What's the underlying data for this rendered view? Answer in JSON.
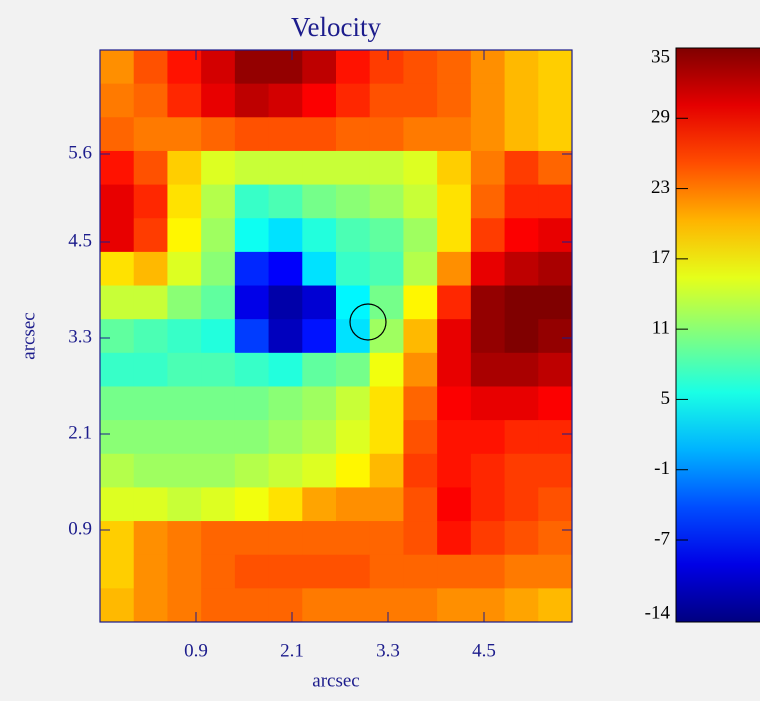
{
  "chart_data": {
    "type": "heatmap",
    "title": "Velocity",
    "xlabel": "arcsec",
    "ylabel": "arcsec",
    "xlim": [
      -0.3,
      5.6
    ],
    "ylim": [
      -0.25,
      6.9
    ],
    "xticks": [
      0.9,
      2.1,
      3.3,
      4.5
    ],
    "yticks": [
      0.9,
      2.1,
      3.3,
      4.5,
      5.6
    ],
    "colormap": "jet",
    "axis_color": "#1c1c8c",
    "z": [
      [
        22,
        25,
        28,
        31,
        34,
        34,
        32,
        28,
        26,
        25,
        24,
        22,
        20,
        19
      ],
      [
        23,
        24,
        27,
        30,
        32,
        31,
        29,
        27,
        25,
        25,
        24,
        22,
        20,
        19
      ],
      [
        24,
        23,
        23,
        24,
        25,
        25,
        25,
        24,
        24,
        23,
        23,
        22,
        20,
        19
      ],
      [
        28,
        25,
        19,
        15,
        14,
        14,
        14,
        14,
        14,
        15,
        19,
        23,
        26,
        24
      ],
      [
        30,
        27,
        18,
        13,
        7,
        8,
        10,
        11,
        12,
        14,
        18,
        24,
        27,
        27
      ],
      [
        30,
        26,
        17,
        12,
        5,
        3,
        6,
        8,
        9,
        12,
        18,
        26,
        29,
        30
      ],
      [
        18,
        20,
        15,
        11,
        -6,
        -8,
        3,
        7,
        8,
        13,
        22,
        30,
        32,
        33
      ],
      [
        14,
        14,
        11,
        9,
        -9,
        -12,
        -10,
        4,
        10,
        17,
        27,
        34,
        35,
        35
      ],
      [
        9,
        8,
        7,
        6,
        -5,
        -11,
        -7,
        3,
        12,
        20,
        30,
        34,
        35,
        34
      ],
      [
        7,
        7,
        8,
        8,
        7,
        6,
        9,
        10,
        16,
        22,
        30,
        33,
        33,
        32
      ],
      [
        10,
        10,
        10,
        10,
        10,
        11,
        12,
        14,
        18,
        24,
        29,
        30,
        30,
        29
      ],
      [
        11,
        11,
        11,
        11,
        11,
        12,
        13,
        15,
        18,
        25,
        28,
        28,
        27,
        27
      ],
      [
        13,
        12,
        12,
        12,
        13,
        14,
        15,
        17,
        20,
        26,
        28,
        27,
        26,
        26
      ],
      [
        15,
        15,
        14,
        15,
        16,
        18,
        21,
        22,
        22,
        25,
        29,
        27,
        26,
        25
      ],
      [
        19,
        22,
        23,
        24,
        24,
        24,
        24,
        24,
        24,
        25,
        28,
        26,
        25,
        24
      ],
      [
        19,
        22,
        23,
        24,
        25,
        25,
        25,
        25,
        24,
        24,
        24,
        24,
        23,
        23
      ],
      [
        20,
        22,
        23,
        24,
        24,
        24,
        23,
        23,
        23,
        23,
        22,
        22,
        21,
        20
      ]
    ],
    "marker": {
      "x": 3.05,
      "y": 3.5
    },
    "colorbar": {
      "lim": [
        -14,
        35
      ],
      "ticks": [
        35,
        29,
        23,
        17,
        11,
        5,
        -1,
        -7,
        -14
      ]
    }
  }
}
